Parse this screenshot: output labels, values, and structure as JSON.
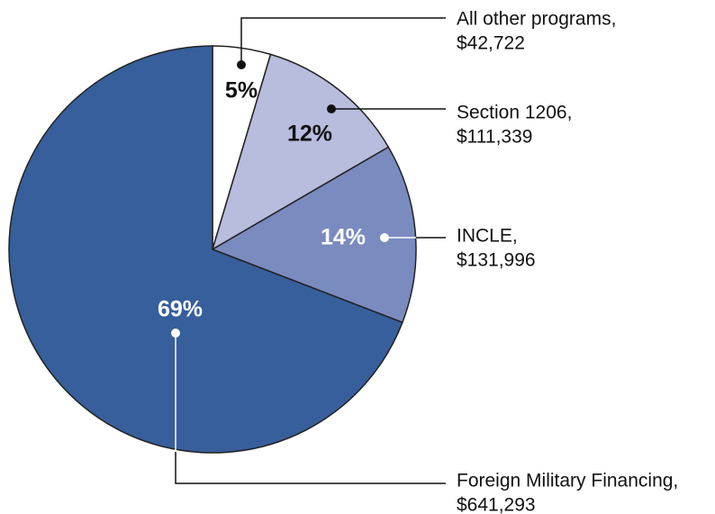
{
  "chart_data": {
    "type": "pie",
    "categories": [
      "All other programs,",
      "Section 1206,",
      "INCLE,",
      "Foreign Military Financing,"
    ],
    "values": [
      42722,
      111339,
      131996,
      641293
    ],
    "value_labels": [
      "$42,722",
      "$111,339",
      "$131,996",
      "$641,293"
    ],
    "percent_labels": [
      "5%",
      "12%",
      "14%",
      "69%"
    ],
    "colors": [
      "#ffffff",
      "#b8bcdd",
      "#7a8bc0",
      "#365f9b"
    ]
  }
}
